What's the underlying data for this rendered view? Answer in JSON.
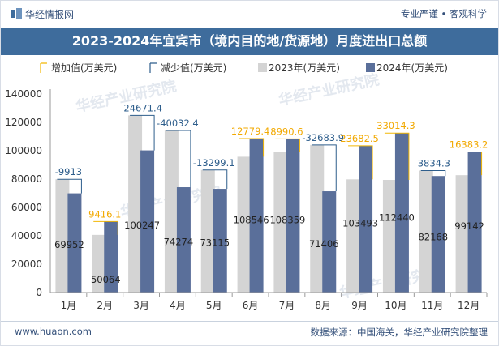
{
  "header": {
    "site": "华经情报网",
    "tagline": "专业严谨 • 客观科学"
  },
  "chart_data": {
    "type": "bar",
    "title": "2023-2024年宜宾市（境内目的地/货源地）月度进出口总额",
    "categories": [
      "1月",
      "2月",
      "3月",
      "4月",
      "5月",
      "6月",
      "7月",
      "8月",
      "9月",
      "10月",
      "11月",
      "12月"
    ],
    "series": [
      {
        "name": "2023年(万美元)",
        "values": [
          79865,
          40648,
          124918,
          114306,
          86414,
          95767,
          99368,
          104090,
          79810,
          79426,
          86002,
          82759
        ]
      },
      {
        "name": "2024年(万美元)",
        "values": [
          69952,
          50064,
          100247,
          74274,
          73115,
          108546,
          108359,
          71406,
          103493,
          112440,
          82168,
          99142
        ]
      }
    ],
    "changes": [
      "-9913",
      "9416.1",
      "-24671.4",
      "-40032.4",
      "-13299.1",
      "12779.4",
      "8990.6",
      "-32683.9",
      "23682.5",
      "33014.3",
      "-3834.3",
      "16383.2"
    ],
    "legend": [
      "增加值(万美元)",
      "减少值(万美元)",
      "2023年(万美元)",
      "2024年(万美元)"
    ],
    "legend_position": "top",
    "yticks": [
      "0",
      "20000",
      "40000",
      "60000",
      "80000",
      "100000",
      "120000",
      "140000"
    ],
    "ylim": [
      0,
      140000
    ],
    "colors": {
      "increase": "#f2b705",
      "decrease": "#2e5e8c",
      "y2023": "#d4d4d4",
      "y2024": "#5a6f9a",
      "increase_label": "#f2a900",
      "decrease_label": "#2e5e8c"
    }
  },
  "footer": {
    "website": "www.huaon.com",
    "source": "数据来源：中国海关，华经产业研究院整理"
  },
  "watermark": "华经产业研究院"
}
